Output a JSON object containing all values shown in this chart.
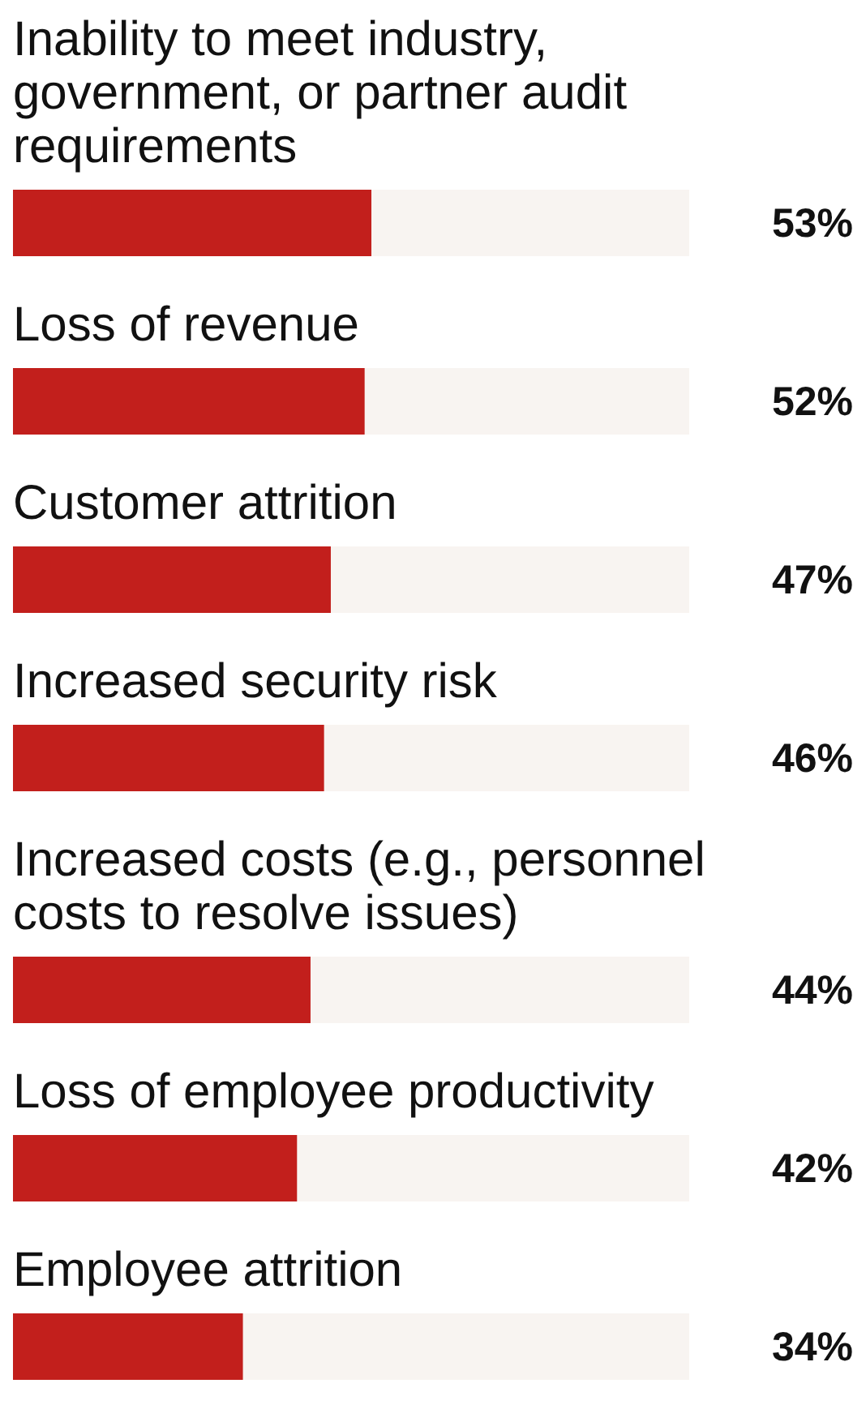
{
  "chart_data": {
    "type": "bar",
    "orientation": "horizontal",
    "categories": [
      "Inability to meet industry, government, or partner audit requirements",
      "Loss of revenue",
      "Customer attrition",
      "Increased security risk",
      "Increased costs (e.g., personnel costs to resolve issues)",
      "Loss of employee productivity",
      "Employee attrition"
    ],
    "values": [
      53,
      52,
      47,
      46,
      44,
      42,
      34
    ],
    "value_labels": [
      "53%",
      "52%",
      "47%",
      "46%",
      "44%",
      "42%",
      "34%"
    ],
    "color": "#c21f1c",
    "xlim": [
      0,
      100
    ],
    "tick_labels": false
  }
}
